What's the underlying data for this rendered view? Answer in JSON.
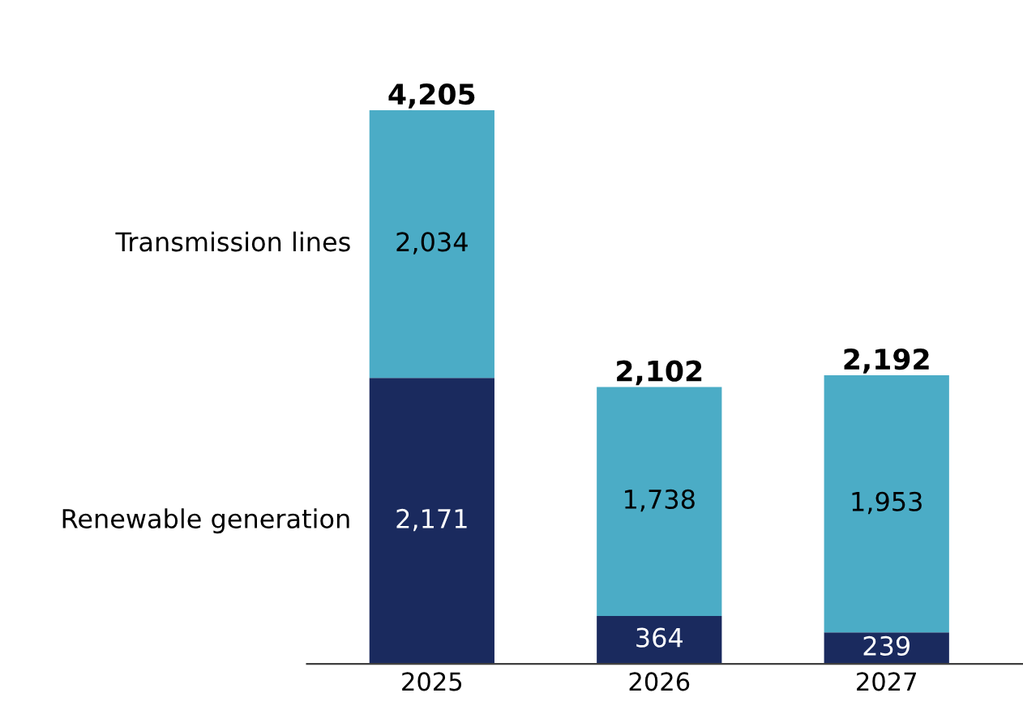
{
  "chart_data": {
    "type": "bar",
    "stacked": true,
    "categories": [
      "2025",
      "2026",
      "2027"
    ],
    "series": [
      {
        "name": "Renewable generation",
        "color": "#1a2a5e",
        "values": [
          2171,
          364,
          239
        ],
        "value_labels": [
          "2,171",
          "364",
          "239"
        ]
      },
      {
        "name": "Transmission lines",
        "color": "#4bacc6",
        "values": [
          2034,
          1738,
          1953
        ],
        "value_labels": [
          "2,034",
          "1,738",
          "1,953"
        ]
      }
    ],
    "totals": [
      "4,205",
      "2,102",
      "2,192"
    ],
    "tick_labels": "x",
    "grid": false,
    "legend": false
  }
}
